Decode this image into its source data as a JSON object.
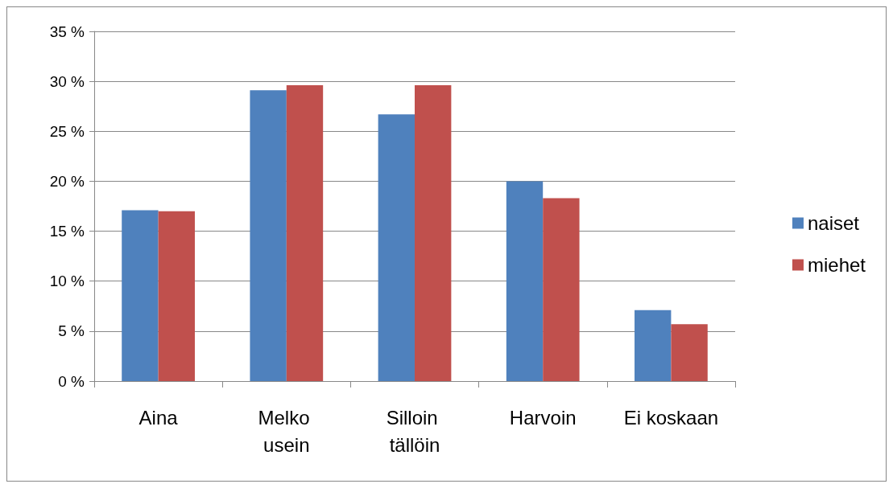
{
  "chart_data": {
    "type": "bar",
    "categories": [
      "Aina",
      "Melko usein",
      "Silloin tällöin",
      "Harvoin",
      "Ei koskaan"
    ],
    "series": [
      {
        "name": "naiset",
        "color": "#4f81bd",
        "values": [
          17.1,
          29.1,
          26.7,
          20.0,
          7.1
        ]
      },
      {
        "name": "miehet",
        "color": "#c0504d",
        "values": [
          17.0,
          29.6,
          29.6,
          18.3,
          5.7
        ]
      }
    ],
    "ylim": [
      0,
      35
    ],
    "yticks": [
      {
        "value": 0,
        "label": "0 %"
      },
      {
        "value": 5,
        "label": "5 %"
      },
      {
        "value": 10,
        "label": "10 %"
      },
      {
        "value": 15,
        "label": "15 %"
      },
      {
        "value": 20,
        "label": "20 %"
      },
      {
        "value": 25,
        "label": "25 %"
      },
      {
        "value": 30,
        "label": "30 %"
      },
      {
        "value": 35,
        "label": "35 %"
      }
    ],
    "grid": "y",
    "legend": "right"
  }
}
